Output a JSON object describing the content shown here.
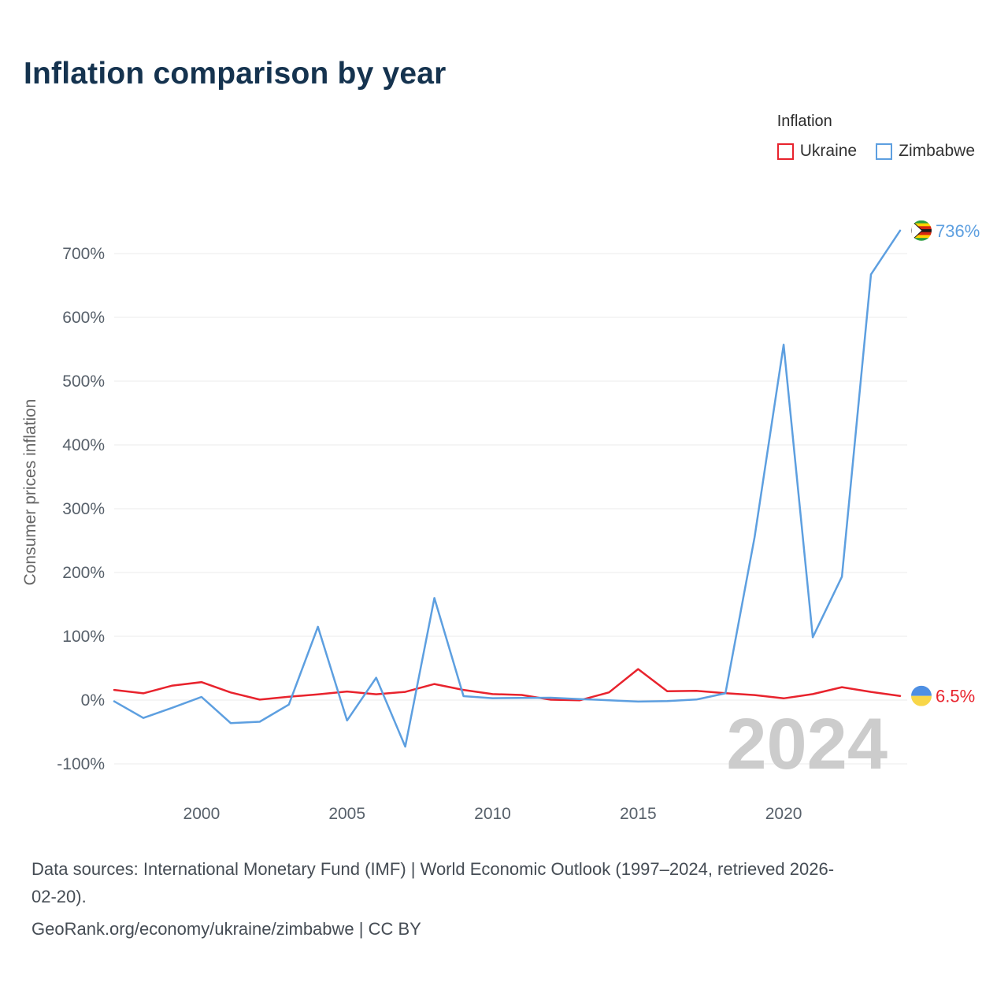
{
  "page": {
    "title": "Inflation comparison by year"
  },
  "legend": {
    "title": "Inflation"
  },
  "watermark": "2024",
  "footer": {
    "lines": [
      "Data sources: International Monetary Fund (IMF) | World Economic Outlook (1997–2024, retrieved 2026-",
      "02-20).",
      "GeoRank.org/economy/ukraine/zimbabwe | CC BY"
    ]
  },
  "chart_data": {
    "type": "line",
    "title": "Inflation comparison by year",
    "xlabel": "",
    "ylabel": "Consumer prices inflation",
    "grid": true,
    "legend_position": "top-right",
    "ylim": [
      -130,
      770
    ],
    "y_tick_suffix": "%",
    "y_ticks": [
      -100,
      0,
      100,
      200,
      300,
      400,
      500,
      600,
      700
    ],
    "x_ticks": [
      2000,
      2005,
      2010,
      2015,
      2020
    ],
    "x": [
      1997,
      1998,
      1999,
      2000,
      2001,
      2002,
      2003,
      2004,
      2005,
      2006,
      2007,
      2008,
      2009,
      2010,
      2011,
      2012,
      2013,
      2014,
      2015,
      2016,
      2017,
      2018,
      2019,
      2020,
      2021,
      2022,
      2023,
      2024
    ],
    "series": [
      {
        "name": "Ukraine",
        "color": "#e8232d",
        "values": [
          15.9,
          10.6,
          22.7,
          28.2,
          12.0,
          0.8,
          5.2,
          9.0,
          13.5,
          9.1,
          12.8,
          25.2,
          15.9,
          9.4,
          8.0,
          0.6,
          -0.3,
          12.1,
          48.7,
          13.9,
          14.4,
          10.9,
          7.9,
          2.7,
          9.4,
          20.2,
          12.9,
          6.5
        ]
      },
      {
        "name": "Zimbabwe",
        "color": "#5d9fe0",
        "values": [
          -2,
          -28,
          -12,
          5,
          -36,
          -34,
          -7,
          115,
          -32,
          35,
          -73,
          160,
          6.2,
          3.0,
          3.5,
          3.7,
          1.6,
          -0.2,
          -2.4,
          -1.6,
          0.9,
          10.6,
          255.3,
          557.2,
          98.5,
          193.4,
          667.4,
          736
        ]
      }
    ],
    "end_labels": [
      {
        "series": "Zimbabwe",
        "text": "736%",
        "flag": "zimbabwe"
      },
      {
        "series": "Ukraine",
        "text": "6.5%",
        "flag": "ukraine"
      }
    ]
  }
}
